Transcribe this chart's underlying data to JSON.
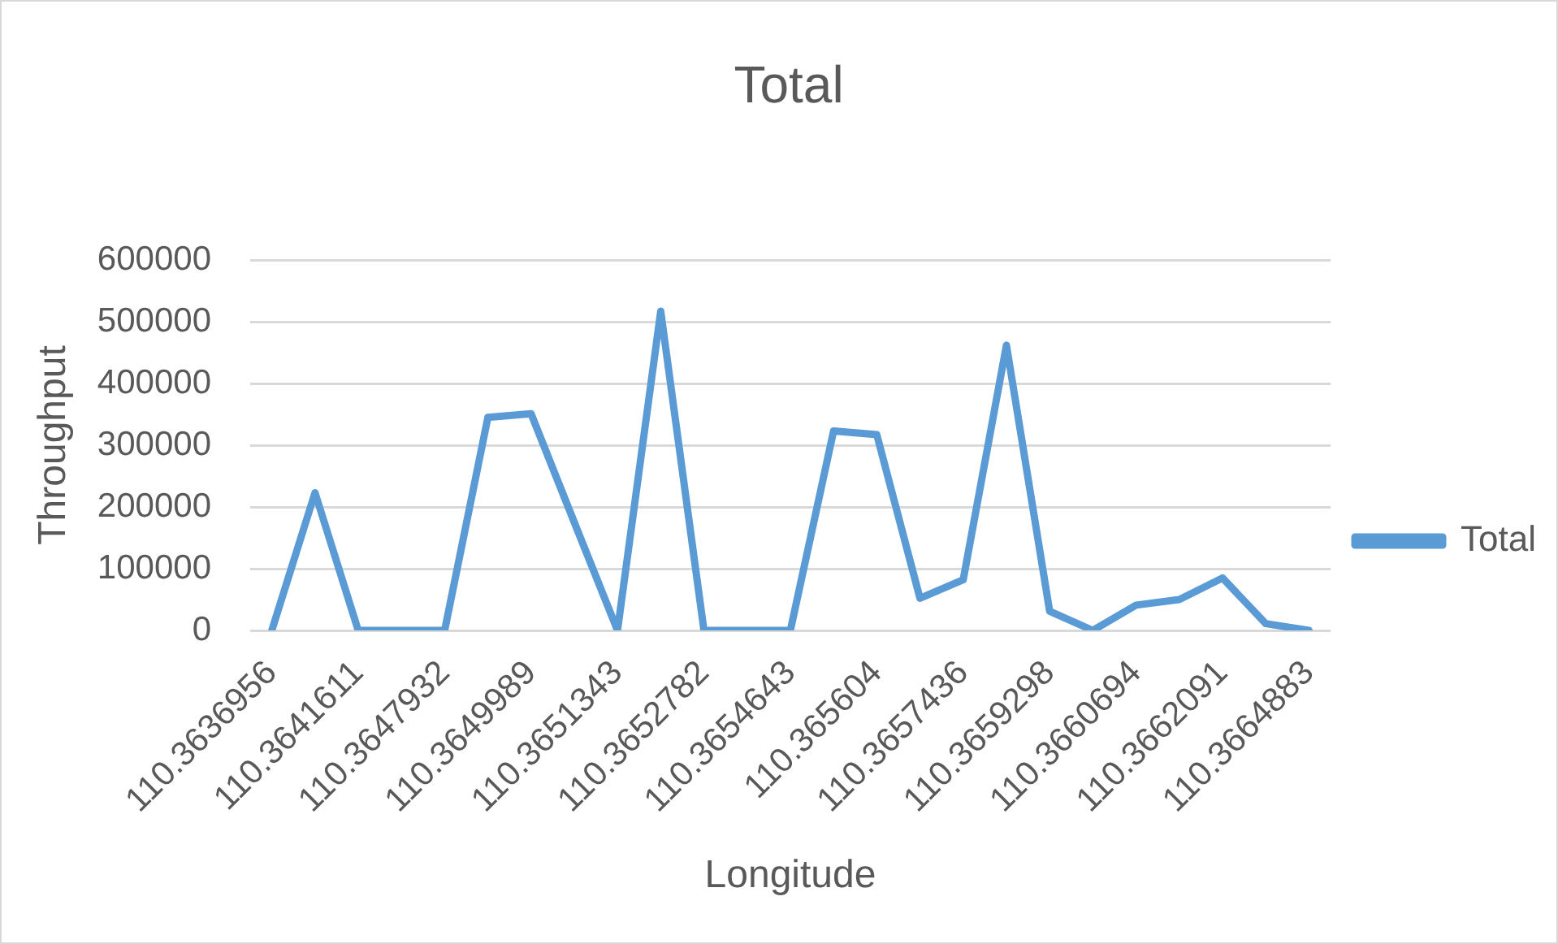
{
  "chart_data": {
    "type": "line",
    "title": "Total",
    "xlabel": "Longitude",
    "ylabel": "Throughput",
    "categories": [
      "110.3636956",
      null,
      "110.3641611",
      null,
      "110.3647932",
      null,
      "110.3649989",
      null,
      "110.3651343",
      null,
      "110.3652782",
      null,
      "110.3654643",
      null,
      "110.365604",
      null,
      "110.3657436",
      null,
      "110.3659298",
      null,
      "110.3660694",
      null,
      "110.3662091",
      null,
      "110.3664883"
    ],
    "series": [
      {
        "name": "Total",
        "color": "#5b9bd5",
        "values": [
          0,
          223000,
          0,
          0,
          0,
          345000,
          351000,
          175000,
          0,
          517000,
          0,
          0,
          0,
          323000,
          317000,
          52000,
          82000,
          462000,
          31000,
          0,
          41000,
          50000,
          85000,
          11000,
          0
        ]
      }
    ],
    "ylim": [
      0,
      600000
    ],
    "yticks": [
      0,
      100000,
      200000,
      300000,
      400000,
      500000,
      600000
    ],
    "grid": "y",
    "legend": "right",
    "marker": "none"
  }
}
